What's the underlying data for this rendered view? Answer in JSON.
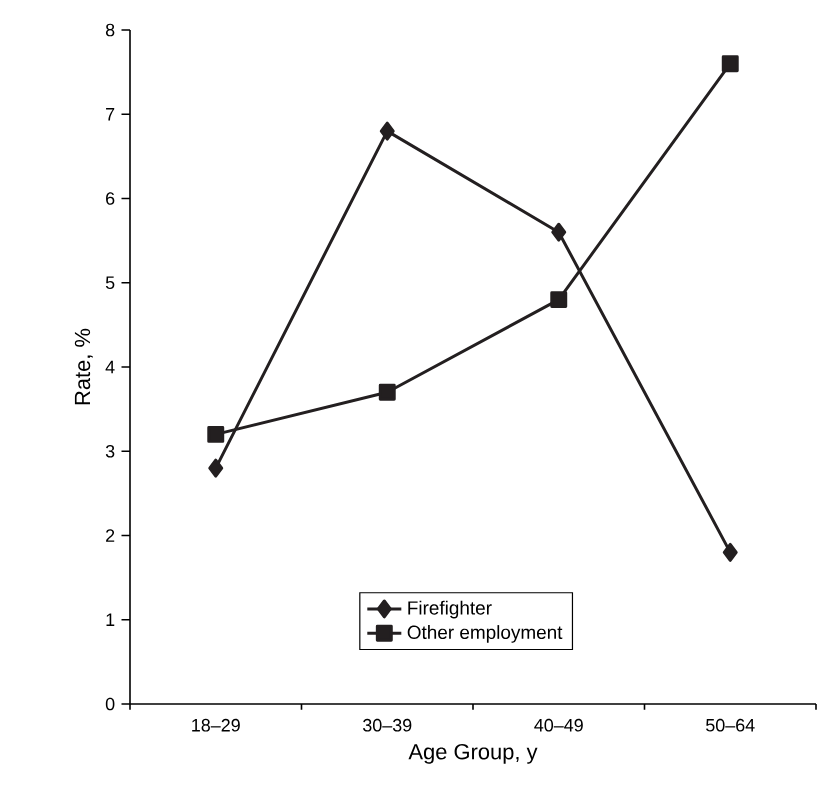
{
  "chart_data": {
    "type": "line",
    "xlabel": "Age Group, y",
    "ylabel": "Rate, %",
    "categories": [
      "18–29",
      "30–39",
      "40–49",
      "50–64"
    ],
    "series": [
      {
        "name": "Firefighter",
        "color": "#231f20",
        "marker": "diamond",
        "values": [
          2.8,
          6.8,
          5.6,
          1.8
        ]
      },
      {
        "name": "Other employment",
        "color": "#231f20",
        "marker": "square",
        "values": [
          3.2,
          3.7,
          4.8,
          7.6
        ]
      }
    ],
    "ylim": [
      0,
      8
    ],
    "yticks": [
      0,
      1,
      2,
      3,
      4,
      5,
      6,
      7,
      8
    ],
    "legend": "bottom",
    "grid": false,
    "line_style": "solid"
  }
}
